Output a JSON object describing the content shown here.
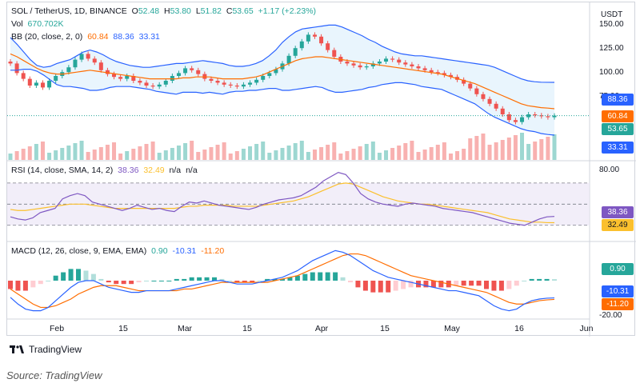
{
  "header": {
    "symbol": "SOL / TetherUS, 1D, BINANCE",
    "open_label": "O",
    "open": "52.48",
    "high_label": "H",
    "high": "53.80",
    "low_label": "L",
    "low": "51.82",
    "close_label": "C",
    "close": "53.65",
    "change": "+1.17 (+2.23%)",
    "vol_label": "Vol",
    "vol": "670.702K",
    "bb_label": "BB (20, close, 2, 0)",
    "bb_basis": "60.84",
    "bb_upper": "88.36",
    "bb_lower": "33.31"
  },
  "rsi_legend": {
    "label": "RSI (14, close, SMA, 14, 2)",
    "rsi": "38.36",
    "sma": "32.49",
    "na1": "n/a",
    "na2": "n/a"
  },
  "macd_legend": {
    "label": "MACD (12, 26, close, 9, EMA, EMA)",
    "hist": "0.90",
    "macd": "-10.31",
    "signal": "-11.20"
  },
  "price_axis": {
    "currency": "USDT",
    "ticks": [
      "150.00",
      "125.00",
      "100.00",
      "75.00"
    ]
  },
  "rsi_axis": {
    "top": "80.00"
  },
  "macd_axis": {
    "bottom": "-20.00"
  },
  "badges": {
    "bb_upper": "88.36",
    "bb_basis": "60.84",
    "price": "53.65",
    "bb_lower": "33.31",
    "rsi": "38.36",
    "rsi_sma": "32.49",
    "macd_hist": "0.90",
    "macd": "-10.31",
    "macd_signal": "-11.20",
    "vol_partial": "670.702K"
  },
  "time_axis": {
    "labels": [
      "Feb",
      "15",
      "Mar",
      "15",
      "Apr",
      "15",
      "May",
      "16",
      "Jun"
    ]
  },
  "colors": {
    "up": "#26a69a",
    "down": "#ef5350",
    "bb_band": "#2962ff",
    "bb_basis": "#ff6d00",
    "bb_fill": "#e3f2fd",
    "rsi_line": "#7e57c2",
    "rsi_sma": "#fbc02d",
    "rsi_fill": "#ede7f6",
    "macd_line": "#2962ff",
    "signal_line": "#ff6d00",
    "price_badge": "#26a69a"
  },
  "chart_data": {
    "type": "candlestick",
    "title": "SOL / TetherUS, 1D, BINANCE",
    "x_range": [
      "2022-01-21",
      "2022-05-24"
    ],
    "ylim": [
      30,
      165
    ],
    "price_close": [
      108,
      98,
      92,
      85,
      88,
      83,
      90,
      95,
      99,
      104,
      112,
      118,
      113,
      109,
      101,
      97,
      94,
      92,
      95,
      90,
      88,
      85,
      84,
      86,
      90,
      95,
      98,
      103,
      101,
      97,
      92,
      90,
      88,
      86,
      85,
      84,
      86,
      88,
      91,
      95,
      98,
      102,
      108,
      116,
      124,
      131,
      138,
      136,
      129,
      122,
      115,
      110,
      108,
      106,
      104,
      105,
      108,
      110,
      113,
      112,
      109,
      107,
      105,
      103,
      101,
      99,
      98,
      96,
      94,
      91,
      87,
      82,
      76,
      71,
      66,
      61,
      55,
      49,
      47,
      52,
      55,
      54,
      53,
      52,
      53.65
    ],
    "bb_upper": [
      135,
      128,
      120,
      112,
      106,
      104,
      105,
      108,
      110,
      112,
      116,
      120,
      122,
      120,
      117,
      113,
      110,
      108,
      106,
      105,
      104,
      104,
      105,
      106,
      107,
      108,
      108,
      109,
      110,
      111,
      110,
      109,
      108,
      106,
      105,
      105,
      106,
      108,
      111,
      116,
      122,
      130,
      136,
      141,
      144,
      145,
      146,
      147,
      148,
      148,
      146,
      143,
      140,
      137,
      133,
      130,
      126,
      123,
      120,
      118,
      117,
      116,
      116,
      115,
      114,
      113,
      112,
      111,
      110,
      109,
      108,
      107,
      106,
      104,
      101,
      98,
      95,
      92,
      90,
      89,
      88.5,
      88.4,
      88.36
    ],
    "bb_basis": [
      118,
      115,
      111,
      107,
      103,
      100,
      98,
      97,
      97,
      98,
      99,
      100,
      101,
      100,
      99,
      98,
      97,
      96,
      95,
      94,
      93,
      92,
      92,
      92,
      92,
      92,
      93,
      93,
      94,
      94,
      94,
      93,
      92,
      92,
      92,
      92,
      93,
      94,
      96,
      99,
      102,
      105,
      108,
      111,
      113,
      114,
      115,
      115,
      114,
      113,
      112,
      111,
      110,
      109,
      108,
      107,
      106,
      105,
      104,
      103,
      102,
      101,
      100,
      99,
      98,
      97,
      95,
      93,
      91,
      89,
      87,
      84,
      81,
      78,
      75,
      72,
      69,
      66,
      64,
      63,
      62,
      61.5,
      60.84
    ],
    "bb_lower": [
      101,
      101,
      102,
      102,
      100,
      96,
      91,
      86,
      84,
      84,
      83,
      82,
      80,
      80,
      81,
      83,
      84,
      84,
      84,
      83,
      82,
      81,
      79,
      78,
      77,
      76,
      78,
      78,
      78,
      77,
      78,
      77,
      76,
      78,
      79,
      79,
      80,
      80,
      81,
      82,
      82,
      80,
      80,
      81,
      82,
      83,
      84,
      83,
      80,
      78,
      78,
      79,
      80,
      81,
      83,
      84,
      86,
      87,
      88,
      88,
      87,
      86,
      84,
      83,
      82,
      81,
      78,
      75,
      72,
      69,
      66,
      61,
      56,
      52,
      49,
      46,
      43,
      40,
      38,
      37,
      35,
      34,
      33.31
    ],
    "rsi": [
      38,
      36,
      35,
      37,
      42,
      44,
      46,
      55,
      58,
      60,
      58,
      52,
      50,
      48,
      46,
      44,
      46,
      49,
      47,
      45,
      46,
      44,
      43,
      48,
      52,
      51,
      53,
      51,
      49,
      48,
      47,
      46,
      45,
      47,
      50,
      52,
      54,
      55,
      56,
      58,
      62,
      66,
      72,
      76,
      80,
      78,
      70,
      60,
      55,
      52,
      50,
      49,
      48,
      50,
      51,
      50,
      49,
      48,
      46,
      45,
      44,
      43,
      42,
      40,
      38,
      36,
      34,
      32,
      31,
      30,
      33,
      36,
      38,
      38.36
    ],
    "rsi_sma": [
      45,
      44,
      44,
      45,
      46,
      47,
      48,
      49,
      50,
      50,
      50,
      49,
      48,
      47,
      46,
      46,
      46,
      46,
      46,
      46,
      46,
      46,
      46,
      47,
      48,
      48,
      49,
      49,
      49,
      49,
      48,
      48,
      48,
      48,
      49,
      50,
      51,
      52,
      53,
      55,
      57,
      60,
      63,
      66,
      69,
      70,
      69,
      66,
      63,
      60,
      57,
      55,
      53,
      52,
      51,
      50,
      50,
      49,
      48,
      47,
      46,
      45,
      44,
      43,
      42,
      40,
      38,
      36,
      35,
      34,
      33,
      33,
      32.5,
      32.49
    ],
    "macd": [
      -10,
      -14,
      -17,
      -18,
      -18,
      -16,
      -12,
      -8,
      -4,
      -1,
      0,
      0,
      -2,
      -4,
      -5,
      -6,
      -7,
      -7,
      -6,
      -6,
      -6,
      -6,
      -5,
      -4,
      -3,
      -2,
      -1,
      0,
      0,
      -1,
      -2,
      -2,
      -2,
      -1,
      0,
      1,
      2,
      4,
      6,
      9,
      12,
      14,
      16,
      18,
      17,
      15,
      12,
      9,
      6,
      4,
      2,
      1,
      0,
      -1,
      -2,
      -3,
      -4,
      -5,
      -6,
      -6,
      -7,
      -8,
      -9,
      -12,
      -15,
      -17,
      -18,
      -17,
      -14,
      -12,
      -11,
      -10.5,
      -10.31
    ],
    "signal": [
      -5,
      -8,
      -11,
      -14,
      -16,
      -16,
      -15,
      -13,
      -11,
      -8,
      -6,
      -4,
      -3,
      -3,
      -3,
      -4,
      -5,
      -6,
      -6,
      -6,
      -6,
      -6,
      -6,
      -5,
      -5,
      -4,
      -3,
      -2,
      -1,
      -1,
      -1,
      -1,
      -1,
      -1,
      -1,
      0,
      1,
      2,
      3,
      5,
      7,
      9,
      11,
      13,
      15,
      16,
      16,
      15,
      13,
      11,
      9,
      7,
      5,
      3,
      2,
      1,
      0,
      -1,
      -2,
      -3,
      -4,
      -5,
      -6,
      -7,
      -9,
      -11,
      -13,
      -14,
      -14,
      -13,
      -12,
      -11.5,
      -11.2
    ]
  }
}
